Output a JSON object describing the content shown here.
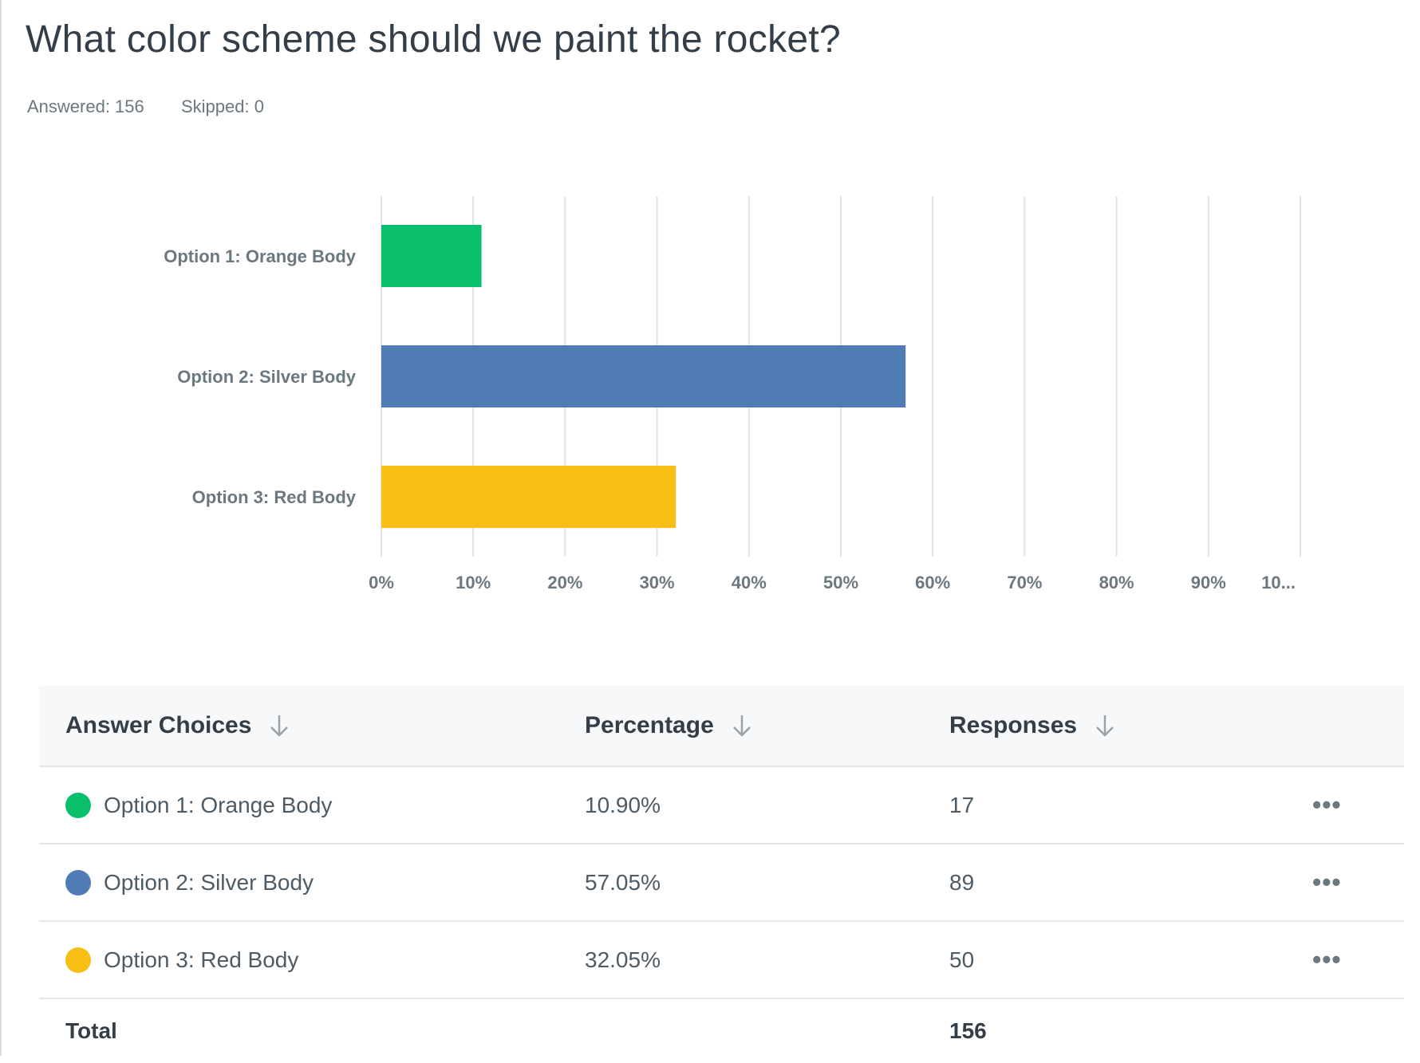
{
  "question": {
    "title": "What color scheme should we paint the rocket?",
    "answered_label": "Answered: 156",
    "skipped_label": "Skipped: 0"
  },
  "chart_data": {
    "type": "bar",
    "orientation": "horizontal",
    "title": "",
    "xlabel": "",
    "ylabel": "",
    "categories": [
      "Option 1: Orange Body",
      "Option 2: Silver Body",
      "Option 3: Red Body"
    ],
    "values": [
      10.9,
      57.05,
      32.05
    ],
    "colors": [
      "#0abf6b",
      "#507cb6",
      "#f8be16"
    ],
    "xlim": [
      0,
      100
    ],
    "xticks": [
      "0%",
      "10%",
      "20%",
      "30%",
      "40%",
      "50%",
      "60%",
      "70%",
      "80%",
      "90%",
      "10..."
    ],
    "grid": true,
    "legend": "none"
  },
  "table": {
    "headers": {
      "choices": "Answer Choices",
      "percentage": "Percentage",
      "responses": "Responses"
    },
    "sort_icon": "arrow-down-icon",
    "more_icon": "more-options-icon",
    "rows": [
      {
        "choice": "Option 1: Orange Body",
        "color": "#0abf6b",
        "percentage": "10.90%",
        "responses": "17",
        "more": "•••"
      },
      {
        "choice": "Option 2: Silver Body",
        "color": "#507cb6",
        "percentage": "57.05%",
        "responses": "89",
        "more": "•••"
      },
      {
        "choice": "Option 3: Red Body",
        "color": "#f8be16",
        "percentage": "32.05%",
        "responses": "50",
        "more": "•••"
      }
    ],
    "total": {
      "label": "Total",
      "responses": "156"
    }
  }
}
